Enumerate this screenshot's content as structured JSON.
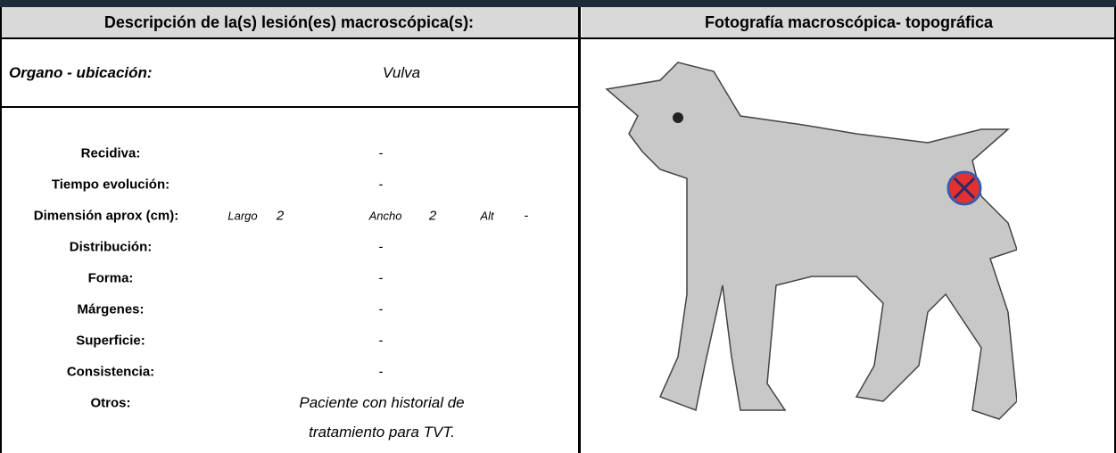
{
  "header": {
    "left_title": "Descripción de la(s) lesión(es) macroscópica(s):",
    "right_title": "Fotografía macroscópica- topográfica"
  },
  "organ": {
    "label": "Organo - ubicación:",
    "value": "Vulva"
  },
  "fields": [
    {
      "label": "Recidiva:",
      "value": "-"
    },
    {
      "label": "Tiempo evolución:",
      "value": "-"
    },
    {
      "label": "Distribución:",
      "value": "-"
    },
    {
      "label": "Forma:",
      "value": "-"
    },
    {
      "label": "Márgenes:",
      "value": "-"
    },
    {
      "label": "Superficie:",
      "value": "-"
    },
    {
      "label": "Consistencia:",
      "value": "-"
    }
  ],
  "dimension": {
    "label": "Dimensión aprox  (cm):",
    "largo_label": "Largo",
    "largo": "2",
    "ancho_label": "Ancho",
    "ancho": "2",
    "alt_label": "Alt",
    "alt": "-"
  },
  "otros": {
    "label": "Otros:",
    "lines": [
      "Paciente con historial de",
      "tratamiento para TVT."
    ]
  }
}
